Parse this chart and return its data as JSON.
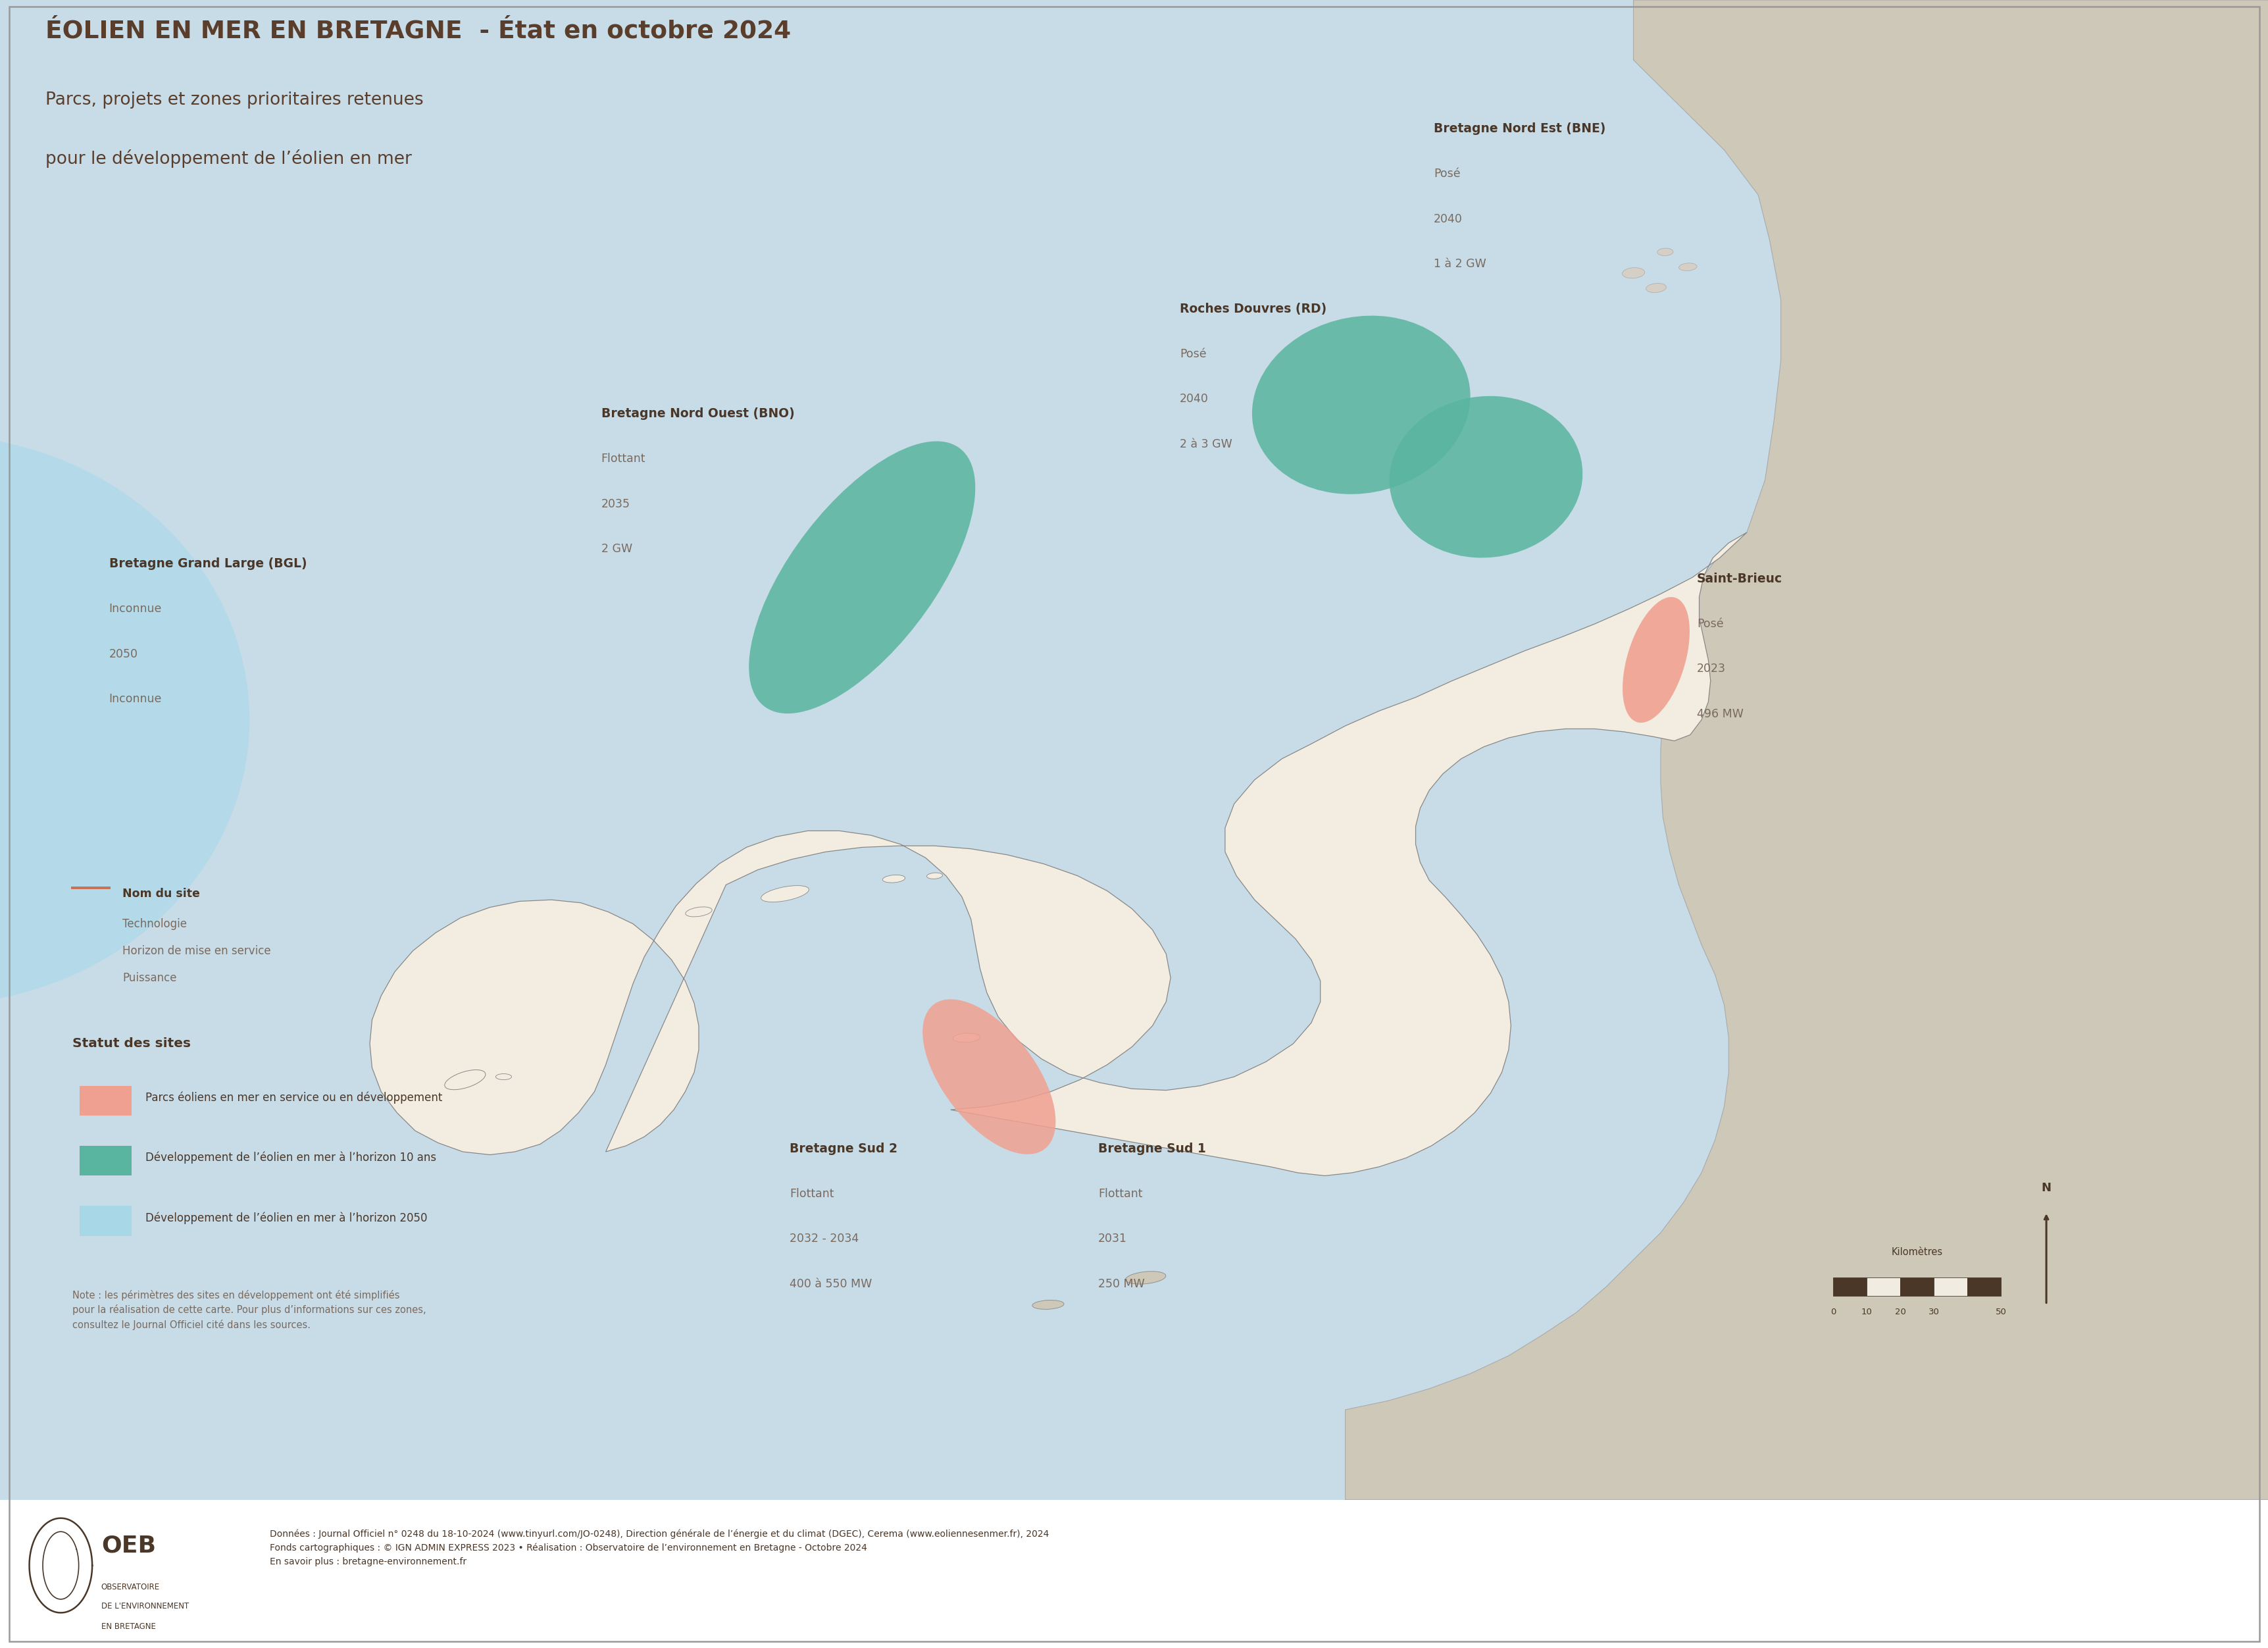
{
  "title_line1": "ÉOLIEN EN MER EN BRETAGNE  - État en octobre 2024",
  "title_line2": "Parcs, projets et zones prioritaires retenues",
  "title_line3": "pour le développement de l’éolien en mer",
  "title_color": "#5a3e2b",
  "background_color": "#ffffff",
  "sea_color": "#c8dce8",
  "brittany_color": "#f2ede0",
  "grey_color": "#cec8b8",
  "border_color": "#aaaaaa",
  "footer_bg": "#ede5d8",
  "text_color_dark": "#4a3728",
  "text_color_medium": "#7a6a5e",
  "legend_site_label": "Nom du site",
  "legend_site_tech": "Technologie",
  "legend_site_horizon": "Horizon de mise en service",
  "legend_site_power": "Puissance",
  "legend_statut": [
    {
      "color": "#f0a090",
      "label": "Parcs éoliens en mer en service ou en développement"
    },
    {
      "color": "#5ab5a0",
      "label": "Développement de l’éolien en mer à l’horizon 10 ans"
    },
    {
      "color": "#a8d8e8",
      "label": "Développement de l’éolien en mer à l’horizon 2050"
    }
  ],
  "note_text": "Note : les périmètres des sites en développement ont été simplifiés\npour la réalisation de cette carte. Pour plus d’informations sur ces zones,\nconsultez le Journal Officiel cité dans les sources.",
  "source_text": "Données : Journal Officiel n° 0248 du 18-10-2024 (www.tinyurl.com/JO-0248), Direction générale de l’énergie et du climat (DGEC), Cerema (www.eoliennesenmer.fr), 2024\nFonds cartographiques : © IGN ADMIN EXPRESS 2023 • Réalisation : Observatoire de l’environnement en Bretagne - Octobre 2024\nEn savoir plus : bretagne-environnement.fr"
}
